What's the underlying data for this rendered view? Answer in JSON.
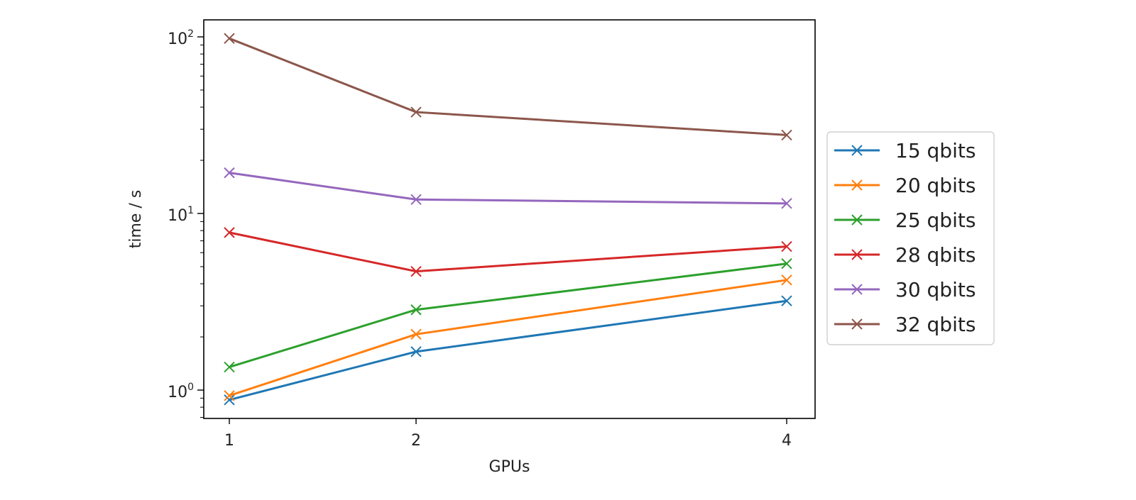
{
  "chart_data": {
    "type": "line",
    "title": "",
    "xlabel": "GPUs",
    "ylabel": "time / s",
    "yscale": "log",
    "x": [
      1,
      2,
      4
    ],
    "x_ticks": [
      "1",
      "2",
      "4"
    ],
    "ylim": [
      0.7,
      125
    ],
    "y_ticks": [
      {
        "base": "10",
        "exp": "0",
        "value": 1
      },
      {
        "base": "10",
        "exp": "1",
        "value": 10
      },
      {
        "base": "10",
        "exp": "2",
        "value": 100
      }
    ],
    "grid": false,
    "legend_position": "outside right",
    "marker": "x",
    "series": [
      {
        "name": "15 qbits",
        "color": "#1f77b4",
        "values": [
          0.88,
          1.65,
          3.2
        ]
      },
      {
        "name": "20 qbits",
        "color": "#ff7f0e",
        "values": [
          0.93,
          2.07,
          4.2
        ]
      },
      {
        "name": "25 qbits",
        "color": "#2ca02c",
        "values": [
          1.35,
          2.85,
          5.2
        ]
      },
      {
        "name": "28 qbits",
        "color": "#d62728",
        "values": [
          7.8,
          4.7,
          6.5
        ]
      },
      {
        "name": "30 qbits",
        "color": "#9467bd",
        "values": [
          17.0,
          12.0,
          11.4
        ]
      },
      {
        "name": "32 qbits",
        "color": "#8c564b",
        "values": [
          98.0,
          37.5,
          27.8
        ]
      }
    ]
  }
}
